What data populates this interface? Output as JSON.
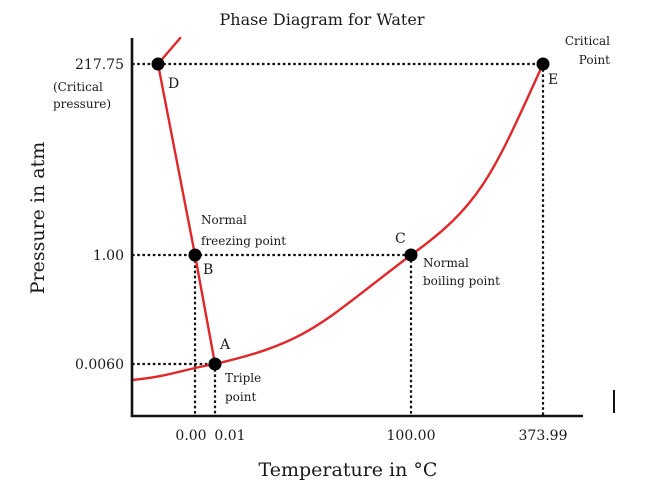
{
  "chart_data": {
    "type": "line",
    "title": "Phase Diagram for Water",
    "xlabel": "Temperature in °C",
    "ylabel": "Pressure in atm",
    "x_ticks": [
      "0.00",
      "0.01",
      "100.00",
      "373.99"
    ],
    "y_ticks": [
      "217.75",
      "1.00",
      "0.0060"
    ],
    "y_tick_note": [
      "(Critical",
      "pressure)"
    ],
    "points": [
      {
        "name": "D",
        "x": -5.0,
        "y": 217.75,
        "label": "D",
        "annotation": []
      },
      {
        "name": "B",
        "x": 0.0,
        "y": 1.0,
        "label": "B",
        "annotation": [
          "Normal",
          "freezing point"
        ]
      },
      {
        "name": "A",
        "x": 0.01,
        "y": 0.006,
        "label": "A",
        "annotation": [
          "Triple",
          "point"
        ]
      },
      {
        "name": "C",
        "x": 100.0,
        "y": 1.0,
        "label": "C",
        "annotation": [
          "Normal",
          "boiling point"
        ]
      },
      {
        "name": "E",
        "x": 373.99,
        "y": 217.75,
        "label": "E",
        "annotation": [
          "Critical",
          "Point"
        ]
      }
    ],
    "series": [
      {
        "values": [
          [
            -2.0,
            230.0
          ],
          [
            -5.0,
            217.75
          ],
          [
            0.0,
            1.0
          ],
          [
            0.01,
            0.006
          ]
        ]
      },
      {
        "values": [
          [
            -60.0,
            0.003
          ],
          [
            0.01,
            0.006
          ],
          [
            100.0,
            1.0
          ],
          [
            373.99,
            217.75
          ]
        ]
      }
    ],
    "grid": false,
    "legend": "none",
    "colors": {
      "curve": "#e0282a",
      "axis": "#111111",
      "point": "#000000"
    }
  }
}
